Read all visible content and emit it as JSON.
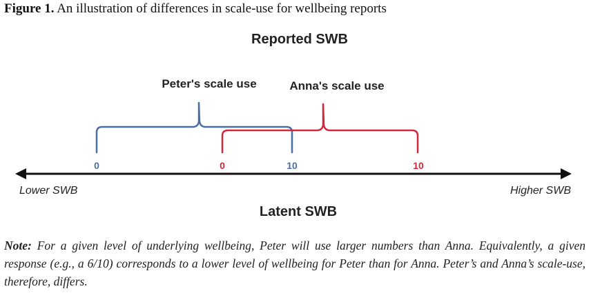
{
  "caption": {
    "label": "Figure 1.",
    "text": "An illustration of differences in scale-use for wellbeing reports"
  },
  "diagram": {
    "top_title": "Reported SWB",
    "bottom_title": "Latent SWB",
    "axis": {
      "left_label": "Lower SWB",
      "right_label": "Higher SWB"
    },
    "peter": {
      "label": "Peter's scale use",
      "min_label": "0",
      "max_label": "10",
      "color": "#4a6fa5"
    },
    "anna": {
      "label": "Anna's scale use",
      "min_label": "0",
      "max_label": "10",
      "color": "#d0283a"
    }
  },
  "note": {
    "label": "Note:",
    "text": "For a given level of underlying wellbeing, Peter will use larger numbers than Anna. Equivalently, a given response (e.g., a 6/10) corresponds to a lower level of wellbeing for Peter than for Anna. Peter’s and Anna’s scale-use, therefore, differs."
  }
}
